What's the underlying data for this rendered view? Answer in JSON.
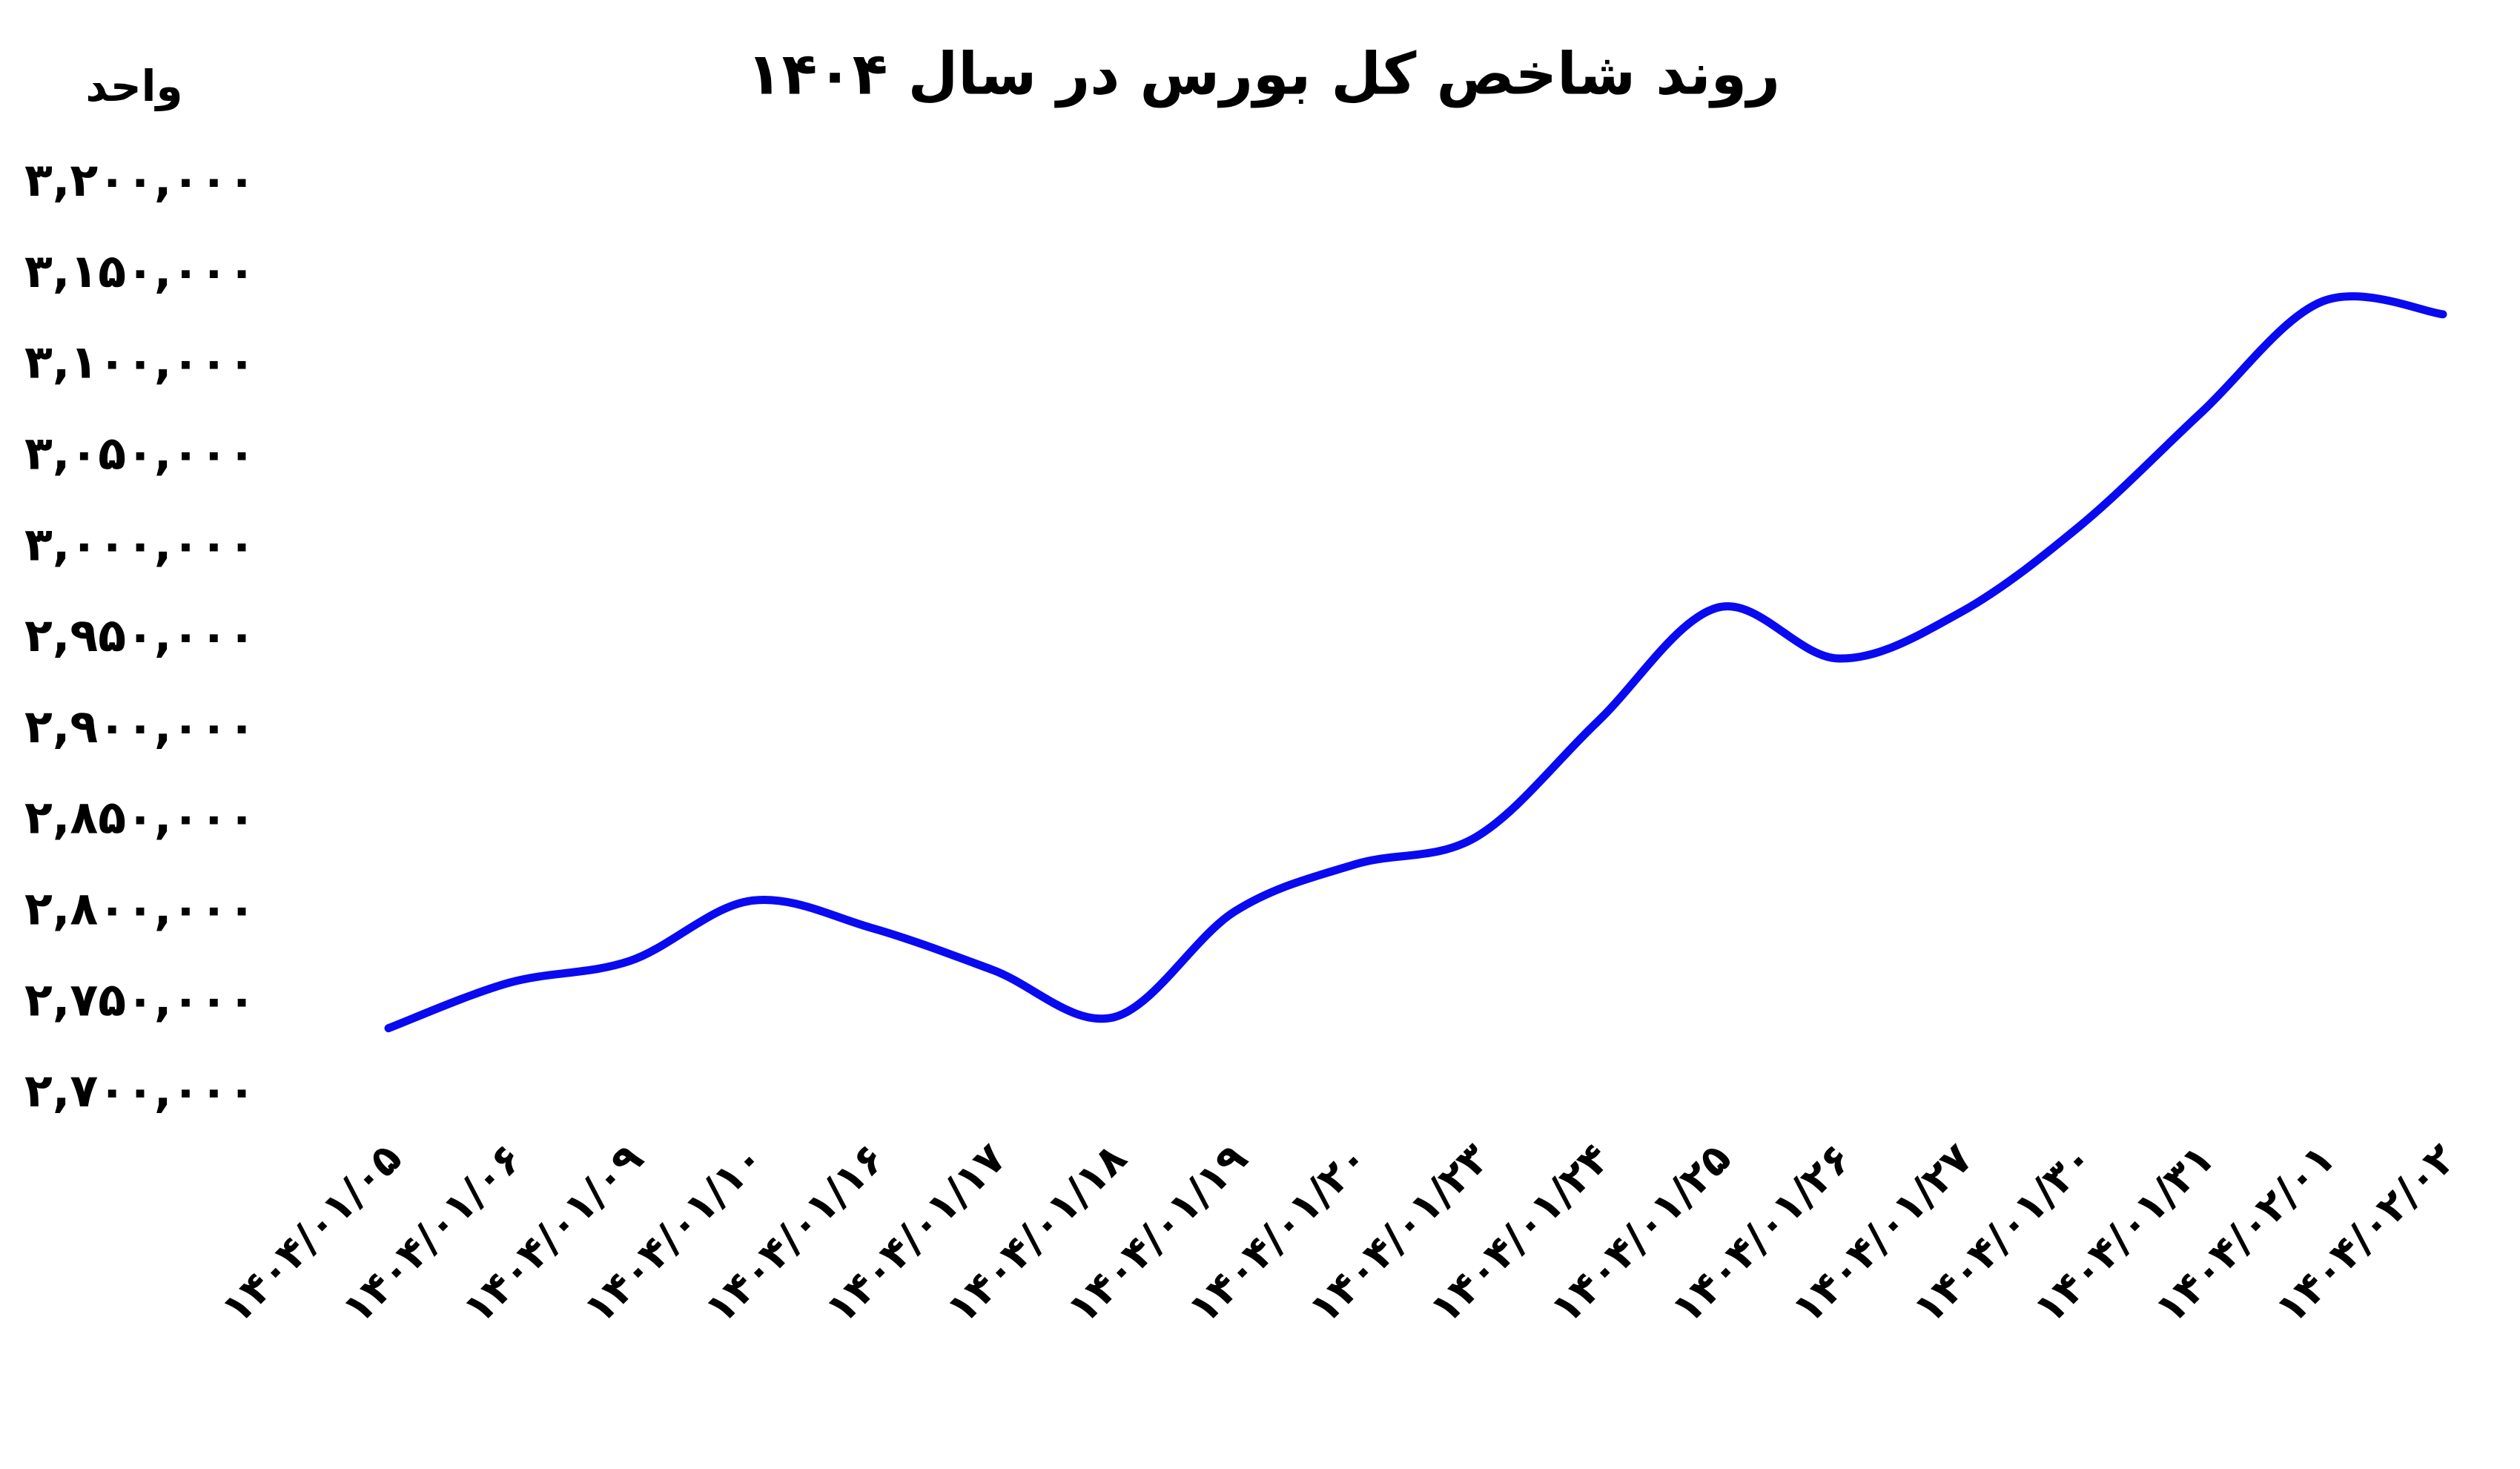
{
  "chart_data": {
    "type": "line",
    "title": "روند شاخص کل بورس در سال ۱۴۰۴",
    "ylabel": "واحد",
    "categories": [
      "۱۴۰۴/۰۱/۰۵",
      "۱۴۰۴/۰۱/۰۶",
      "۱۴۰۴/۰۱/۰۹",
      "۱۴۰۴/۰۱/۱۰",
      "۱۴۰۴/۰۱/۱۶",
      "۱۴۰۴/۰۱/۱۷",
      "۱۴۰۴/۰۱/۱۸",
      "۱۴۰۴/۰۱/۱۹",
      "۱۴۰۴/۰۱/۲۰",
      "۱۴۰۴/۰۱/۲۳",
      "۱۴۰۴/۰۱/۲۴",
      "۱۴۰۴/۰۱/۲۵",
      "۱۴۰۴/۰۱/۲۶",
      "۱۴۰۴/۰۱/۲۷",
      "۱۴۰۴/۰۱/۳۰",
      "۱۴۰۴/۰۱/۳۱",
      "۱۴۰۴/۰۲/۰۱",
      "۱۴۰۴/۰۲/۰۲"
    ],
    "values": [
      2736000,
      2761000,
      2773000,
      2806000,
      2791000,
      2768000,
      2742000,
      2800000,
      2826000,
      2841000,
      2904000,
      2967000,
      2939000,
      2964000,
      3012000,
      3074000,
      3135000,
      3128000
    ],
    "color": "#0a0af0",
    "ylim": [
      2700000,
      3200000
    ],
    "yticks": [
      {
        "value": 2700000,
        "label": "۲,۷۰۰,۰۰۰"
      },
      {
        "value": 2750000,
        "label": "۲,۷۵۰,۰۰۰"
      },
      {
        "value": 2800000,
        "label": "۲,۸۰۰,۰۰۰"
      },
      {
        "value": 2850000,
        "label": "۲,۸۵۰,۰۰۰"
      },
      {
        "value": 2900000,
        "label": "۲,۹۰۰,۰۰۰"
      },
      {
        "value": 2950000,
        "label": "۲,۹۵۰,۰۰۰"
      },
      {
        "value": 3000000,
        "label": "۳,۰۰۰,۰۰۰"
      },
      {
        "value": 3050000,
        "label": "۳,۰۵۰,۰۰۰"
      },
      {
        "value": 3100000,
        "label": "۳,۱۰۰,۰۰۰"
      },
      {
        "value": 3150000,
        "label": "۳,۱۵۰,۰۰۰"
      },
      {
        "value": 3200000,
        "label": "۳,۲۰۰,۰۰۰"
      }
    ],
    "grid": false
  }
}
